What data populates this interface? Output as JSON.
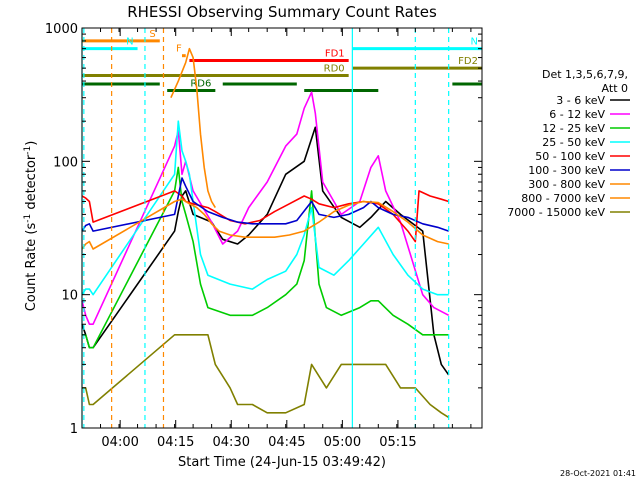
{
  "chart_data": {
    "type": "line",
    "title": "RHESSI Observing Summary Count Rates",
    "xlabel": "Start Time (24-Jun-15 03:49:42)",
    "ylabel_main": "Count Rate (s",
    "ylabel_sup": "-1",
    "ylabel_mid": " detector",
    "ylabel_sup2": "-1",
    "ylabel_end": ")",
    "x_range_min": [
      0,
      108
    ],
    "y_scale": "log",
    "ylim": [
      1,
      1000
    ],
    "x_ticks": [
      {
        "t": 10.3,
        "label": "04:00"
      },
      {
        "t": 25.3,
        "label": "04:15"
      },
      {
        "t": 40.3,
        "label": "04:30"
      },
      {
        "t": 55.3,
        "label": "04:45"
      },
      {
        "t": 70.3,
        "label": "05:00"
      },
      {
        "t": 85.3,
        "label": "05:15"
      }
    ],
    "y_ticks": [
      {
        "v": 1,
        "label": "1"
      },
      {
        "v": 10,
        "label": "10"
      },
      {
        "v": 100,
        "label": "100"
      },
      {
        "v": 1000,
        "label": "1000"
      }
    ],
    "legend_header": [
      "Det 1,3,5,6,7,9,",
      "Att 0"
    ],
    "series": [
      {
        "name": "3 - 6 keV",
        "color": "#000000",
        "points": [
          [
            0,
            6
          ],
          [
            1,
            5
          ],
          [
            2,
            4
          ],
          [
            3,
            4
          ],
          [
            25,
            30
          ],
          [
            26,
            42
          ],
          [
            27,
            55
          ],
          [
            28,
            60
          ],
          [
            30,
            40
          ],
          [
            35,
            35
          ],
          [
            38,
            26
          ],
          [
            42,
            24
          ],
          [
            45,
            28
          ],
          [
            50,
            40
          ],
          [
            55,
            80
          ],
          [
            60,
            100
          ],
          [
            63,
            180
          ],
          [
            65,
            60
          ],
          [
            70,
            38
          ],
          [
            75,
            32
          ],
          [
            78,
            38
          ],
          [
            82,
            50
          ],
          [
            86,
            40
          ],
          [
            92,
            30
          ],
          [
            95,
            5
          ],
          [
            97,
            3
          ],
          [
            99,
            2.5
          ]
        ]
      },
      {
        "name": "6 - 12 keV",
        "color": "#ff00ff",
        "points": [
          [
            0,
            9
          ],
          [
            1,
            7
          ],
          [
            2,
            6
          ],
          [
            3,
            6
          ],
          [
            25,
            130
          ],
          [
            26,
            170
          ],
          [
            27,
            80
          ],
          [
            28,
            100
          ],
          [
            30,
            60
          ],
          [
            35,
            35
          ],
          [
            38,
            24
          ],
          [
            42,
            30
          ],
          [
            45,
            45
          ],
          [
            50,
            70
          ],
          [
            55,
            130
          ],
          [
            58,
            160
          ],
          [
            60,
            250
          ],
          [
            62,
            330
          ],
          [
            63,
            230
          ],
          [
            65,
            70
          ],
          [
            70,
            40
          ],
          [
            75,
            50
          ],
          [
            78,
            90
          ],
          [
            80,
            110
          ],
          [
            82,
            60
          ],
          [
            86,
            35
          ],
          [
            92,
            10
          ],
          [
            95,
            8
          ],
          [
            99,
            7
          ]
        ]
      },
      {
        "name": "12 - 25 keV",
        "color": "#00cc00",
        "points": [
          [
            0,
            5
          ],
          [
            1,
            5
          ],
          [
            2,
            4
          ],
          [
            3,
            4
          ],
          [
            25,
            60
          ],
          [
            26,
            90
          ],
          [
            27,
            50
          ],
          [
            28,
            40
          ],
          [
            30,
            25
          ],
          [
            32,
            12
          ],
          [
            34,
            8
          ],
          [
            40,
            7
          ],
          [
            46,
            7
          ],
          [
            50,
            8
          ],
          [
            55,
            10
          ],
          [
            58,
            12
          ],
          [
            60,
            18
          ],
          [
            62,
            60
          ],
          [
            64,
            12
          ],
          [
            66,
            8
          ],
          [
            70,
            7
          ],
          [
            75,
            8
          ],
          [
            78,
            9
          ],
          [
            80,
            9
          ],
          [
            84,
            7
          ],
          [
            88,
            6
          ],
          [
            92,
            5
          ],
          [
            96,
            5
          ],
          [
            99,
            5
          ]
        ]
      },
      {
        "name": "25 - 50 keV",
        "color": "#00ffff",
        "points": [
          [
            0,
            10
          ],
          [
            1,
            11
          ],
          [
            2,
            11
          ],
          [
            3,
            10
          ],
          [
            25,
            80
          ],
          [
            26,
            200
          ],
          [
            27,
            120
          ],
          [
            28,
            100
          ],
          [
            29,
            80
          ],
          [
            30,
            50
          ],
          [
            32,
            20
          ],
          [
            34,
            14
          ],
          [
            40,
            12
          ],
          [
            46,
            11
          ],
          [
            50,
            13
          ],
          [
            55,
            15
          ],
          [
            58,
            20
          ],
          [
            60,
            28
          ],
          [
            62,
            45
          ],
          [
            64,
            16
          ],
          [
            68,
            14
          ],
          [
            72,
            18
          ],
          [
            76,
            24
          ],
          [
            80,
            32
          ],
          [
            84,
            20
          ],
          [
            88,
            14
          ],
          [
            92,
            11
          ],
          [
            96,
            10
          ],
          [
            99,
            10
          ]
        ]
      },
      {
        "name": "50 - 100 keV",
        "color": "#ff0000",
        "points": [
          [
            0,
            55
          ],
          [
            1,
            53
          ],
          [
            2,
            50
          ],
          [
            3,
            35
          ],
          [
            25,
            60
          ],
          [
            27,
            55
          ],
          [
            28,
            50
          ],
          [
            30,
            48
          ],
          [
            34,
            45
          ],
          [
            36,
            42
          ],
          [
            40,
            36
          ],
          [
            44,
            34
          ],
          [
            48,
            36
          ],
          [
            52,
            42
          ],
          [
            56,
            48
          ],
          [
            60,
            55
          ],
          [
            62,
            52
          ],
          [
            64,
            48
          ],
          [
            68,
            45
          ],
          [
            72,
            48
          ],
          [
            76,
            50
          ],
          [
            80,
            48
          ],
          [
            84,
            40
          ],
          [
            88,
            30
          ],
          [
            90,
            25
          ],
          [
            91,
            60
          ],
          [
            94,
            55
          ],
          [
            97,
            52
          ],
          [
            99,
            50
          ]
        ]
      },
      {
        "name": "100 - 300 keV",
        "color": "#0000cc",
        "points": [
          [
            0,
            30
          ],
          [
            1,
            33
          ],
          [
            2,
            34
          ],
          [
            3,
            30
          ],
          [
            25,
            40
          ],
          [
            26,
            55
          ],
          [
            27,
            75
          ],
          [
            28,
            65
          ],
          [
            30,
            50
          ],
          [
            34,
            42
          ],
          [
            38,
            38
          ],
          [
            42,
            35
          ],
          [
            46,
            34
          ],
          [
            50,
            34
          ],
          [
            55,
            34
          ],
          [
            58,
            36
          ],
          [
            62,
            50
          ],
          [
            64,
            40
          ],
          [
            68,
            38
          ],
          [
            72,
            40
          ],
          [
            76,
            45
          ],
          [
            78,
            50
          ],
          [
            80,
            45
          ],
          [
            84,
            40
          ],
          [
            88,
            38
          ],
          [
            92,
            34
          ],
          [
            96,
            32
          ],
          [
            99,
            30
          ]
        ]
      },
      {
        "name": "300 - 800 keV",
        "color": "#ff8800",
        "points": [
          [
            0,
            22
          ],
          [
            1,
            24
          ],
          [
            2,
            25
          ],
          [
            3,
            22
          ],
          [
            25,
            50
          ],
          [
            27,
            52
          ],
          [
            29,
            48
          ],
          [
            31,
            45
          ],
          [
            33,
            40
          ],
          [
            35,
            34
          ],
          [
            37,
            30
          ],
          [
            40,
            28
          ],
          [
            44,
            27
          ],
          [
            48,
            27
          ],
          [
            52,
            27
          ],
          [
            56,
            28
          ],
          [
            60,
            30
          ],
          [
            64,
            35
          ],
          [
            68,
            42
          ],
          [
            72,
            47
          ],
          [
            76,
            50
          ],
          [
            80,
            49
          ],
          [
            84,
            42
          ],
          [
            88,
            35
          ],
          [
            92,
            28
          ],
          [
            96,
            25
          ],
          [
            99,
            24
          ]
        ]
      },
      {
        "name": "800 - 7000 keV",
        "color": "#ff8800",
        "points": [
          [
            24,
            300
          ],
          [
            26,
            400
          ],
          [
            28,
            550
          ],
          [
            29,
            700
          ],
          [
            30,
            600
          ],
          [
            31,
            350
          ],
          [
            32,
            160
          ],
          [
            33,
            90
          ],
          [
            34,
            60
          ],
          [
            35,
            50
          ],
          [
            36,
            45
          ]
        ]
      },
      {
        "name": "7000 - 15000 keV",
        "color": "#808000",
        "points": [
          [
            0,
            2
          ],
          [
            1,
            2
          ],
          [
            2,
            1.5
          ],
          [
            3,
            1.5
          ],
          [
            25,
            5
          ],
          [
            30,
            5
          ],
          [
            34,
            5
          ],
          [
            36,
            3
          ],
          [
            40,
            2
          ],
          [
            42,
            1.5
          ],
          [
            46,
            1.5
          ],
          [
            50,
            1.3
          ],
          [
            55,
            1.3
          ],
          [
            60,
            1.5
          ],
          [
            62,
            3
          ],
          [
            66,
            2
          ],
          [
            70,
            3
          ],
          [
            74,
            3
          ],
          [
            78,
            3
          ],
          [
            82,
            3
          ],
          [
            86,
            2
          ],
          [
            90,
            2
          ],
          [
            94,
            1.5
          ],
          [
            97,
            1.3
          ],
          [
            99,
            1.2
          ]
        ]
      }
    ],
    "bars": [
      {
        "label": "S",
        "color": "#ff8800",
        "y": 800,
        "t0": 0,
        "t1": 21
      },
      {
        "label": "N",
        "color": "#00ffff",
        "y": 700,
        "t0": 0,
        "t1": 15
      },
      {
        "label": "N",
        "color": "#00ffff",
        "y": 700,
        "t0": 73,
        "t1": 108
      },
      {
        "label": "F",
        "color": "#ff8800",
        "y": 620,
        "t0": 27,
        "t1": 28
      },
      {
        "label": "FD1",
        "color": "#ff0000",
        "y": 570,
        "t0": 29,
        "t1": 72
      },
      {
        "label": "FD2",
        "color": "#808000",
        "y": 500,
        "t0": 73,
        "t1": 108
      },
      {
        "label": "RD0",
        "color": "#808000",
        "y": 440,
        "t0": 0,
        "t1": 72
      },
      {
        "label": "",
        "color": "#006600",
        "y": 380,
        "t0": 0,
        "t1": 21
      },
      {
        "label": "",
        "color": "#006600",
        "y": 380,
        "t0": 38,
        "t1": 58
      },
      {
        "label": "",
        "color": "#006600",
        "y": 380,
        "t0": 100,
        "t1": 108
      },
      {
        "label": "RD6",
        "color": "#006600",
        "y": 340,
        "t0": 23,
        "t1": 36
      },
      {
        "label": "",
        "color": "#006600",
        "y": 340,
        "t0": 60,
        "t1": 80
      }
    ],
    "vlines": [
      {
        "t": 0,
        "color": "#00ffff",
        "dash": false
      },
      {
        "t": 0.5,
        "color": "#00ffff",
        "dash": true
      },
      {
        "t": 8,
        "color": "#ff8800",
        "dash": true
      },
      {
        "t": 17,
        "color": "#00ffff",
        "dash": true
      },
      {
        "t": 22,
        "color": "#ff8800",
        "dash": true
      },
      {
        "t": 73,
        "color": "#00ffff",
        "dash": false
      },
      {
        "t": 90,
        "color": "#00ffff",
        "dash": true
      },
      {
        "t": 99,
        "color": "#00ffff",
        "dash": true
      }
    ]
  },
  "timestamp": "28-Oct-2021 01:41"
}
